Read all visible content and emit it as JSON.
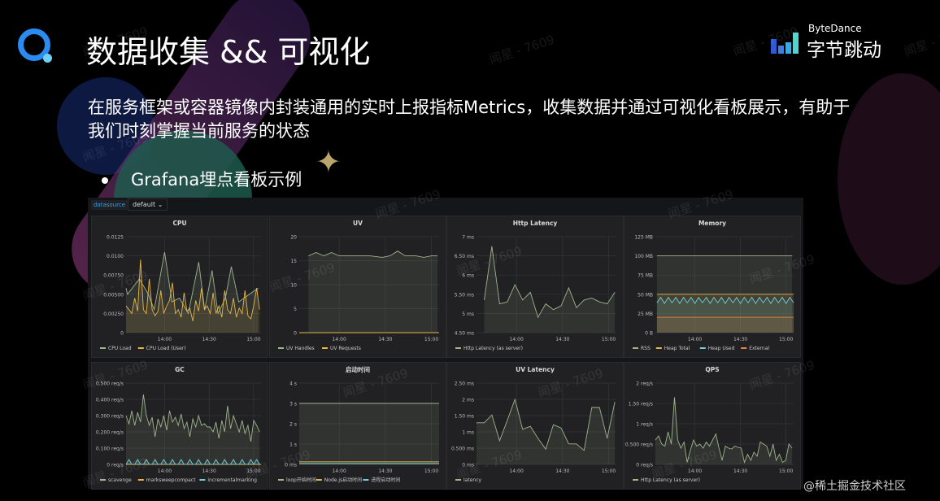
{
  "slide": {
    "title": "数据收集 && 可视化",
    "body": "在服务框架或容器镜像内封装通用的实时上报指标Metrics，收集数据并通过可视化看板展示，有助于我们时刻掌握当前服务的状态",
    "bullet": "Grafana埋点看板示例",
    "brand_en": "ByteDance",
    "brand_cn": "字节跳动",
    "watermark": "闻星 - 7609",
    "credit": "@稀土掘金技术社区"
  },
  "dashboard": {
    "datasource_label": "datasource",
    "datasource_value": "default ⌄",
    "x_ticks": [
      "14:00",
      "14:30",
      "15:00"
    ],
    "x_range": [
      "13:34",
      "15:05"
    ],
    "colors": {
      "green": "#9fb58c",
      "yellow": "#e5b64a",
      "cyan": "#6ed0e0",
      "orange": "#ef843c"
    },
    "panels": [
      {
        "title": "CPU",
        "y_max": 0.0125,
        "y_ticks": [
          {
            "v": 0,
            "label": "0"
          },
          {
            "v": 0.0025,
            "label": "0.00250"
          },
          {
            "v": 0.005,
            "label": "0.00500"
          },
          {
            "v": 0.0075,
            "label": "0.00750"
          },
          {
            "v": 0.01,
            "label": "0.0100"
          },
          {
            "v": 0.0125,
            "label": "0.0125"
          }
        ],
        "series": [
          {
            "name": "CPU Load",
            "color": "green",
            "points": [
              [
                "13:34",
                0.0058
              ],
              [
                "13:35",
                0.005
              ],
              [
                "13:43",
                0.007
              ],
              [
                "13:49",
                0.005
              ],
              [
                "13:53",
                0.003
              ],
              [
                "14:00",
                0.0105
              ],
              [
                "14:05",
                0.004
              ],
              [
                "14:10",
                0.0045
              ],
              [
                "14:16",
                0.0025
              ],
              [
                "14:23",
                0.0092
              ],
              [
                "14:27",
                0.003
              ],
              [
                "14:32",
                0.0081
              ],
              [
                "14:36",
                0.0025
              ],
              [
                "14:41",
                0.0045
              ],
              [
                "14:45",
                0.0086
              ],
              [
                "14:50",
                0.004
              ],
              [
                "15:03",
                0.0058
              ]
            ]
          },
          {
            "name": "CPU Load (User)",
            "color": "yellow",
            "t_start": "13:34",
            "t_end": "15:04",
            "values": [
              0.0035,
              0.003,
              0.0025,
              0.0045,
              0.0028,
              0.0095,
              0.003,
              0.0025,
              0.007,
              0.003,
              0.0022,
              0.0028,
              0.0055,
              0.0025,
              0.0035,
              0.0042,
              0.0065,
              0.0025,
              0.003,
              0.002,
              0.0052,
              0.0028,
              0.0032,
              0.0015,
              0.0042,
              0.0028,
              0.0058,
              0.003,
              0.0035,
              0.0025,
              0.0052,
              0.0025,
              0.0035,
              0.002,
              0.0055,
              0.003,
              0.0025,
              0.0045,
              0.002,
              0.0032,
              0.0025,
              0.0055,
              0.0022,
              0.0018,
              0.0035,
              0.0058,
              0.003
            ]
          }
        ]
      },
      {
        "title": "UV",
        "y_max": 20,
        "y_ticks": [
          {
            "v": 0,
            "label": "0"
          },
          {
            "v": 5,
            "label": "5"
          },
          {
            "v": 10,
            "label": "10"
          },
          {
            "v": 15,
            "label": "15"
          },
          {
            "v": 20,
            "label": "20"
          }
        ],
        "series": [
          {
            "name": "UV Handles",
            "color": "green",
            "points": [
              [
                "13:40",
                16
              ],
              [
                "13:45",
                16.7
              ],
              [
                "13:50",
                16
              ],
              [
                "13:55",
                16.7
              ],
              [
                "14:00",
                16
              ],
              [
                "14:10",
                16
              ],
              [
                "14:20",
                16
              ],
              [
                "14:28",
                15.7
              ],
              [
                "14:33",
                16
              ],
              [
                "14:38",
                17
              ],
              [
                "14:43",
                16
              ],
              [
                "14:50",
                16
              ],
              [
                "14:55",
                15.7
              ],
              [
                "15:00",
                16
              ],
              [
                "15:04",
                16
              ]
            ]
          },
          {
            "name": "UV Requests",
            "color": "yellow",
            "points": [
              [
                "13:34",
                0
              ],
              [
                "15:05",
                0
              ]
            ]
          }
        ]
      },
      {
        "title": "Http Latency",
        "y_min": 4.5,
        "y_max": 7,
        "y_ticks": [
          {
            "v": 4.5,
            "label": "4.50 ms"
          },
          {
            "v": 5,
            "label": "5 ms"
          },
          {
            "v": 5.5,
            "label": "5.50 ms"
          },
          {
            "v": 6,
            "label": "6 ms"
          },
          {
            "v": 6.5,
            "label": "6.50 ms"
          },
          {
            "v": 7,
            "label": "7 ms"
          }
        ],
        "series": [
          {
            "name": "Http Latency (as server)",
            "color": "green",
            "t_start": "13:39",
            "t_end": "15:04",
            "values": [
              5.35,
              6.75,
              5.25,
              5.3,
              5.75,
              5.35,
              5.55,
              4.9,
              5.25,
              5.1,
              5.2,
              5.67,
              5.15,
              5.35,
              5.4,
              5.3,
              5.25,
              5.55
            ]
          }
        ]
      },
      {
        "title": "Memory",
        "y_max": 125,
        "y_ticks": [
          {
            "v": 0,
            "label": "0 B"
          },
          {
            "v": 25,
            "label": "25 MB"
          },
          {
            "v": 50,
            "label": "50 MB"
          },
          {
            "v": 75,
            "label": "75 MB"
          },
          {
            "v": 100,
            "label": "100 MB"
          },
          {
            "v": 125,
            "label": "125 MB"
          }
        ],
        "series": [
          {
            "name": "RSS",
            "color": "green",
            "points": [
              [
                "13:35",
                100
              ],
              [
                "15:04",
                100
              ]
            ]
          },
          {
            "name": "Heap Total",
            "color": "yellow",
            "points": [
              [
                "13:35",
                50
              ],
              [
                "15:05",
                50
              ]
            ]
          },
          {
            "name": "Heap Used",
            "color": "cyan",
            "t_start": "13:35",
            "t_end": "15:05",
            "values": [
              39,
              46,
              38,
              46,
              39,
              46,
              38,
              46,
              39,
              46,
              38,
              46,
              39,
              46,
              38,
              46,
              39,
              46,
              38,
              46,
              39,
              46,
              38,
              46,
              39,
              46,
              38,
              46,
              39,
              46,
              38,
              46,
              39,
              46,
              38,
              46,
              39
            ]
          },
          {
            "name": "External",
            "color": "orange",
            "points": [
              [
                "13:35",
                20
              ],
              [
                "15:05",
                20
              ]
            ]
          }
        ]
      },
      {
        "title": "GC",
        "y_max": 0.5,
        "y_ticks": [
          {
            "v": 0,
            "label": "0 req/s"
          },
          {
            "v": 0.1,
            "label": "0.100 req/s"
          },
          {
            "v": 0.2,
            "label": "0.200 req/s"
          },
          {
            "v": 0.3,
            "label": "0.300 req/s"
          },
          {
            "v": 0.4,
            "label": "0.400 req/s"
          },
          {
            "v": 0.5,
            "label": "0.500 req/s"
          }
        ],
        "series": [
          {
            "name": "scavenge",
            "color": "green",
            "t_start": "13:34",
            "t_end": "15:04",
            "values": [
              0.3,
              0.25,
              0.33,
              0.24,
              0.32,
              0.26,
              0.43,
              0.3,
              0.24,
              0.29,
              0.17,
              0.28,
              0.23,
              0.3,
              0.21,
              0.33,
              0.26,
              0.29,
              0.24,
              0.31,
              0.22,
              0.26,
              0.17,
              0.28,
              0.23,
              0.3,
              0.24,
              0.25,
              0.23,
              0.23,
              0.2,
              0.26,
              0.16,
              0.27,
              0.2,
              0.36,
              0.22,
              0.3,
              0.25,
              0.2,
              0.27,
              0.19,
              0.24,
              0.14,
              0.27,
              0.24,
              0.2
            ]
          },
          {
            "name": "marksweepcompact",
            "color": "yellow",
            "points": [
              [
                "13:34",
                0
              ],
              [
                "15:05",
                0
              ]
            ]
          },
          {
            "name": "incrementalmarking",
            "color": "cyan",
            "t_start": "13:34",
            "t_end": "15:04",
            "values": [
              0,
              0.03,
              0,
              0,
              0.03,
              0,
              0,
              0.03,
              0,
              0,
              0.03,
              0,
              0,
              0.03,
              0,
              0,
              0.03,
              0,
              0,
              0.03,
              0,
              0,
              0.03,
              0,
              0,
              0.03,
              0,
              0,
              0.03,
              0,
              0,
              0.03,
              0,
              0,
              0.03,
              0,
              0,
              0.03,
              0,
              0,
              0.03,
              0,
              0,
              0.03,
              0,
              0.03,
              0
            ]
          }
        ]
      },
      {
        "title": "启动时间",
        "y_max": 4,
        "y_ticks": [
          {
            "v": 0,
            "label": "0 ms"
          },
          {
            "v": 1,
            "label": "1 s"
          },
          {
            "v": 2,
            "label": "2 s"
          },
          {
            "v": 3,
            "label": "3 s"
          },
          {
            "v": 4,
            "label": "4 s"
          }
        ],
        "series": [
          {
            "name": "loop开始时间",
            "color": "green",
            "points": [
              [
                "13:34",
                3
              ],
              [
                "15:05",
                3
              ]
            ]
          },
          {
            "name": "Node.js启动时间",
            "color": "yellow",
            "points": [
              [
                "13:34",
                0.13
              ],
              [
                "15:05",
                0.13
              ]
            ]
          },
          {
            "name": "进程启动时间",
            "color": "cyan",
            "points": [
              [
                "13:34",
                0.04
              ],
              [
                "15:05",
                0.04
              ]
            ]
          }
        ]
      },
      {
        "title": "UV Latency",
        "y_max": 2.5,
        "y_ticks": [
          {
            "v": 0,
            "label": "0 ms"
          },
          {
            "v": 0.5,
            "label": "0.500 ms"
          },
          {
            "v": 1,
            "label": "1 ms"
          },
          {
            "v": 1.5,
            "label": "1.50 ms"
          },
          {
            "v": 2,
            "label": "2 ms"
          },
          {
            "v": 2.5,
            "label": "2.50 ms"
          }
        ],
        "series": [
          {
            "name": "latency",
            "color": "green",
            "t_start": "13:34",
            "t_end": "15:04",
            "values": [
              1.28,
              1.28,
              1.52,
              0.73,
              1.35,
              2.0,
              1.08,
              1.17,
              0.8,
              0.47,
              1.22,
              1.12,
              0.63,
              0.63,
              0.43,
              1.75,
              1.75,
              0.8,
              1.92
            ]
          }
        ]
      },
      {
        "title": "QPS",
        "y_max": 2,
        "y_ticks": [
          {
            "v": 0,
            "label": "0 req/s"
          },
          {
            "v": 0.5,
            "label": "0.500 req/s"
          },
          {
            "v": 1,
            "label": "1 req/s"
          },
          {
            "v": 1.5,
            "label": "1.50 req/s"
          },
          {
            "v": 2,
            "label": "2 req/s"
          }
        ],
        "series": [
          {
            "name": "Http Latency (as server)",
            "color": "green",
            "t_start": "13:34",
            "t_end": "15:04",
            "values": [
              0.6,
              0.7,
              0.5,
              0.45,
              0.8,
              0.5,
              1.65,
              0.6,
              0.4,
              0.55,
              0.05,
              0.35,
              0.6,
              0.45,
              0.5,
              0.4,
              0.55,
              0.45,
              0.6,
              0.75,
              0.4,
              0.1,
              0.45,
              0.4,
              0.38,
              0.45,
              0.42,
              0.4,
              0.05,
              0.25,
              0.1,
              0.3,
              0.2,
              0.55,
              0.5,
              0.45,
              0.2,
              0.5,
              0.1,
              0.25,
              0.05,
              0.1,
              0.5,
              0.4
            ]
          }
        ]
      }
    ]
  }
}
